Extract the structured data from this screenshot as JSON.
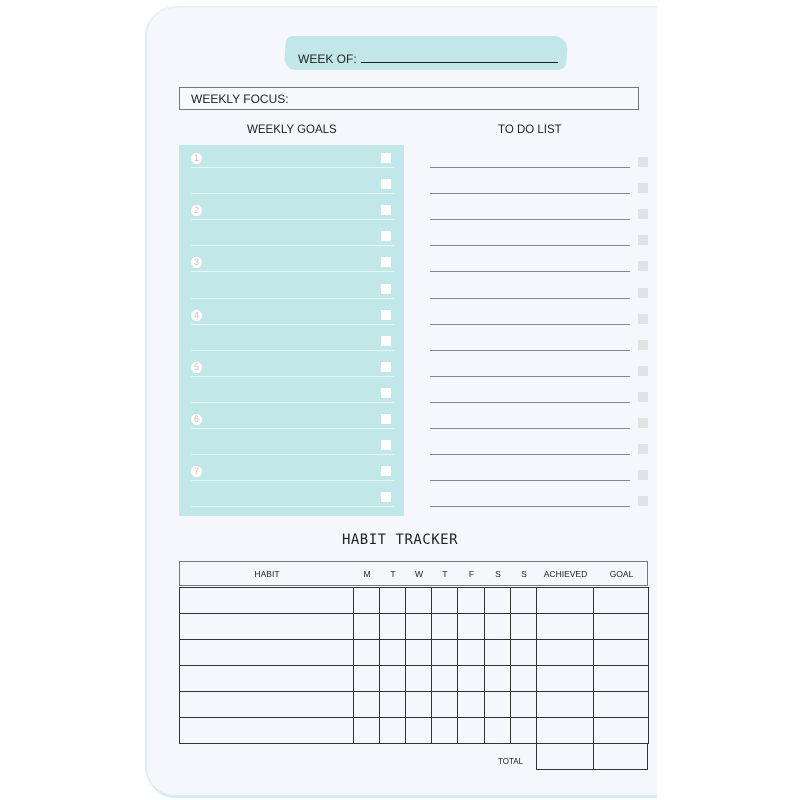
{
  "header": {
    "week_of_label": "WEEK OF:",
    "weekly_focus_label": "WEEKLY FOCUS:"
  },
  "goals": {
    "title": "WEEKLY GOALS",
    "numbers": [
      "1",
      "2",
      "3",
      "4",
      "5",
      "6",
      "7"
    ],
    "rows": 14
  },
  "todo": {
    "title": "TO DO LIST",
    "rows": 14
  },
  "habit_tracker": {
    "title": "HABIT TRACKER",
    "columns": [
      "HABIT",
      "M",
      "T",
      "W",
      "T",
      "F",
      "S",
      "S",
      "ACHIEVED",
      "GOAL"
    ],
    "rows": 6,
    "total_label": "TOTAL"
  },
  "colors": {
    "accent": "#c2e7e8",
    "number": "#f0b3a8",
    "paper": "#f6f7fc"
  }
}
